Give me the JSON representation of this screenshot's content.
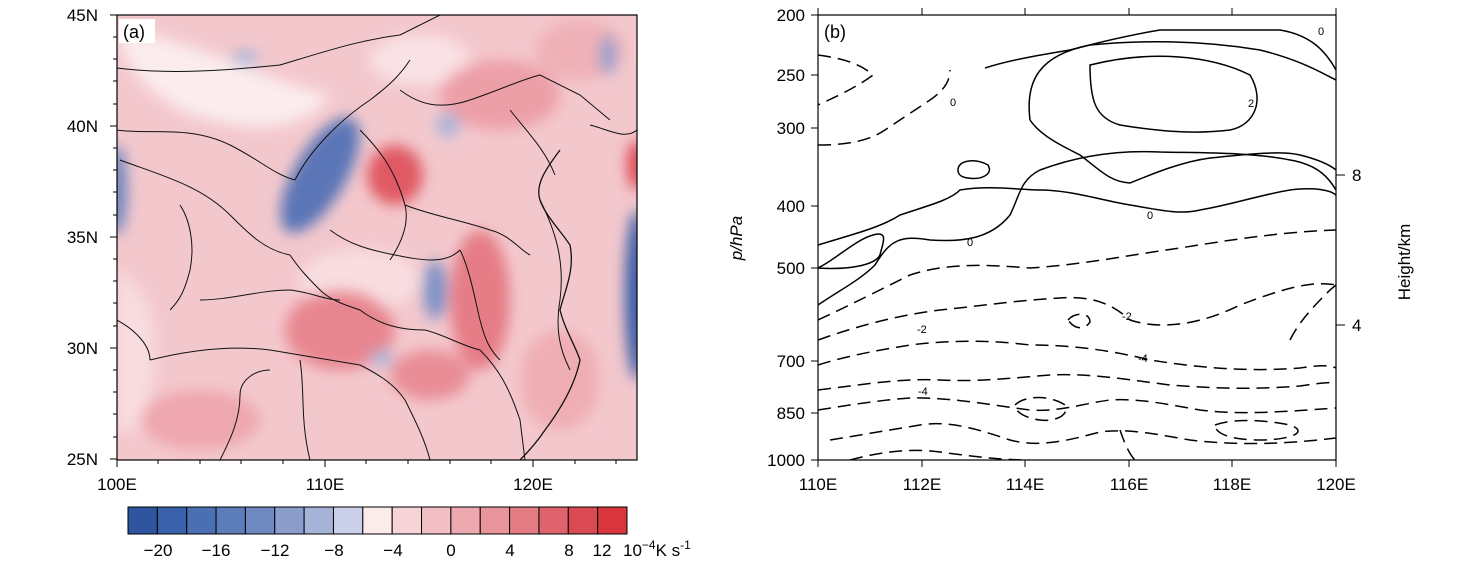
{
  "panel_a": {
    "label": "(a)",
    "lat_labels": [
      "45N",
      "40N",
      "35N",
      "30N",
      "25N"
    ],
    "lon_labels": [
      "100E",
      "110E",
      "120E"
    ],
    "colorbar": {
      "colors": [
        "#2f55a0",
        "#3a62aa",
        "#4a6fb3",
        "#5d7cba",
        "#7088c0",
        "#8a9dcb",
        "#a5b3d8",
        "#c9d0e8",
        "#fbebeb",
        "#f6d3d6",
        "#f1bfc4",
        "#eda9af",
        "#e8949b",
        "#e47c85",
        "#df636c",
        "#da4a52",
        "#d8363c"
      ],
      "tick_labels": [
        "−20",
        "−16",
        "−12",
        "−8",
        "−4",
        "0",
        "4",
        "8",
        "12"
      ],
      "unit_prefix": "10",
      "unit_exp": "−4",
      "unit_rest": "K s",
      "unit_exp2": "-1"
    }
  },
  "panel_b": {
    "label": "(b)",
    "ylabel_left": "p/hPa",
    "ylabel_right": "Height/km",
    "p_ticks": [
      "200",
      "250",
      "300",
      "400",
      "500",
      "700",
      "850",
      "1000"
    ],
    "lon_ticks": [
      "110E",
      "112E",
      "114E",
      "116E",
      "118E",
      "120E"
    ],
    "height_ticks": [
      "8",
      "4"
    ],
    "contour_labels": [
      "0",
      "0",
      "0",
      "0",
      "2",
      "-2",
      "-2",
      "-4",
      "-4"
    ]
  },
  "chart_data": {
    "type": "heatmap",
    "panels": [
      {
        "name": "(a)",
        "kind": "map",
        "x_range": [
          100,
          125
        ],
        "y_range": [
          25,
          45
        ],
        "x_unit": "E",
        "y_unit": "N",
        "colorbar_levels": [
          -20,
          -16,
          -12,
          -8,
          -4,
          0,
          4,
          8,
          12
        ],
        "colorbar_units": "10^-4 K s^-1"
      },
      {
        "name": "(b)",
        "kind": "contour",
        "x_range": [
          110,
          120
        ],
        "y_range": [
          1000,
          200
        ],
        "y_scale": "log",
        "ylabel": "p/hPa",
        "ylabel_right": "Height/km",
        "contour_levels": [
          -4,
          -2,
          0,
          2
        ]
      }
    ]
  }
}
